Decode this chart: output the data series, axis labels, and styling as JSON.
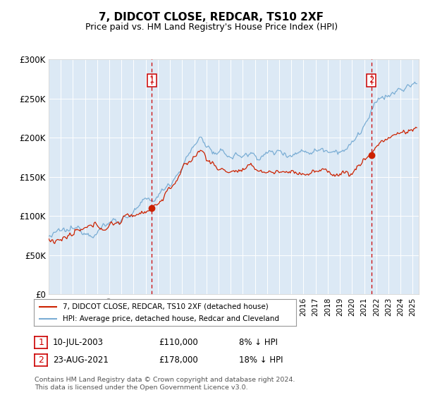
{
  "title": "7, DIDCOT CLOSE, REDCAR, TS10 2XF",
  "subtitle": "Price paid vs. HM Land Registry's House Price Index (HPI)",
  "legend_line1": "7, DIDCOT CLOSE, REDCAR, TS10 2XF (detached house)",
  "legend_line2": "HPI: Average price, detached house, Redcar and Cleveland",
  "purchase1_date": "10-JUL-2003",
  "purchase1_price": 110000,
  "purchase1_pct": "8% ↓ HPI",
  "purchase2_date": "23-AUG-2021",
  "purchase2_price": 178000,
  "purchase2_pct": "18% ↓ HPI",
  "footnote1": "Contains HM Land Registry data © Crown copyright and database right 2024.",
  "footnote2": "This data is licensed under the Open Government Licence v3.0.",
  "hpi_color": "#7aadd4",
  "property_color": "#cc2200",
  "plot_bg_color": "#dce9f5",
  "vline_color": "#cc0000",
  "grid_color": "#ffffff",
  "ylim": [
    0,
    300000
  ],
  "yticks": [
    0,
    50000,
    100000,
    150000,
    200000,
    250000,
    300000
  ],
  "ytick_labels": [
    "£0",
    "£50K",
    "£100K",
    "£150K",
    "£200K",
    "£250K",
    "£300K"
  ],
  "xstart": 1995.0,
  "xend": 2025.5
}
